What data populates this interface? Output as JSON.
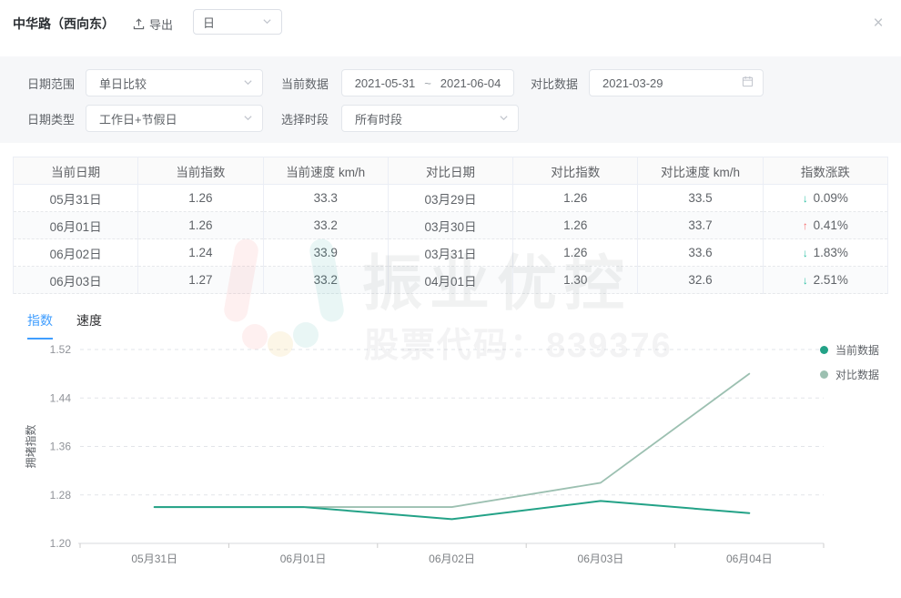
{
  "header": {
    "title": "中华路（西向东）",
    "export_label": "导出",
    "period_value": "日",
    "close_label": "×"
  },
  "filters": {
    "date_range": {
      "label": "日期范围",
      "value": "单日比较"
    },
    "current_data": {
      "label": "当前数据",
      "start": "2021-05-31",
      "separator": "~",
      "end": "2021-06-04"
    },
    "compare_data": {
      "label": "对比数据",
      "value": "2021-03-29"
    },
    "date_type": {
      "label": "日期类型",
      "value": "工作日+节假日"
    },
    "time_period": {
      "label": "选择时段",
      "value": "所有时段"
    }
  },
  "table": {
    "headers": [
      "当前日期",
      "当前指数",
      "当前速度 km/h",
      "对比日期",
      "对比指数",
      "对比速度 km/h",
      "指数涨跌"
    ],
    "rows": [
      {
        "current_date": "05月31日",
        "current_index": "1.26",
        "current_speed": "33.3",
        "compare_date": "03月29日",
        "compare_index": "1.26",
        "compare_speed": "33.5",
        "change": {
          "direction": "down",
          "value": "0.09%"
        }
      },
      {
        "current_date": "06月01日",
        "current_index": "1.26",
        "current_speed": "33.2",
        "compare_date": "03月30日",
        "compare_index": "1.26",
        "compare_speed": "33.7",
        "change": {
          "direction": "up",
          "value": "0.41%"
        }
      },
      {
        "current_date": "06月02日",
        "current_index": "1.24",
        "current_speed": "33.9",
        "compare_date": "03月31日",
        "compare_index": "1.26",
        "compare_speed": "33.6",
        "change": {
          "direction": "down",
          "value": "1.83%"
        }
      },
      {
        "current_date": "06月03日",
        "current_index": "1.27",
        "current_speed": "33.2",
        "compare_date": "04月01日",
        "compare_index": "1.30",
        "compare_speed": "32.6",
        "change": {
          "direction": "down",
          "value": "2.51%"
        }
      }
    ]
  },
  "tabs": [
    {
      "label": "指数",
      "active": true
    },
    {
      "label": "速度",
      "active": false
    }
  ],
  "chart_data": {
    "type": "line",
    "x": [
      "05月31日",
      "06月01日",
      "06月02日",
      "06月03日",
      "06月04日"
    ],
    "series": [
      {
        "name": "当前数据",
        "color": "#23a287",
        "values": [
          1.26,
          1.26,
          1.24,
          1.27,
          1.25
        ]
      },
      {
        "name": "对比数据",
        "color": "#9cc0b1",
        "values": [
          1.26,
          1.26,
          1.26,
          1.3,
          1.48
        ]
      }
    ],
    "ylabel": "拥堵指数",
    "ylim": [
      1.2,
      1.52
    ],
    "yticks": [
      1.2,
      1.28,
      1.36,
      1.44,
      1.52
    ],
    "grid": "horizontal-dashed",
    "legend_position": "top-right"
  },
  "watermark": {
    "line1": "振业优控",
    "line2": "股票代码：839376"
  },
  "colors": {
    "tab_active": "#409eff",
    "current_series": "#23a287",
    "compare_series": "#9cc0b1",
    "up": "#f56c6c",
    "down": "#2bbfa3"
  }
}
